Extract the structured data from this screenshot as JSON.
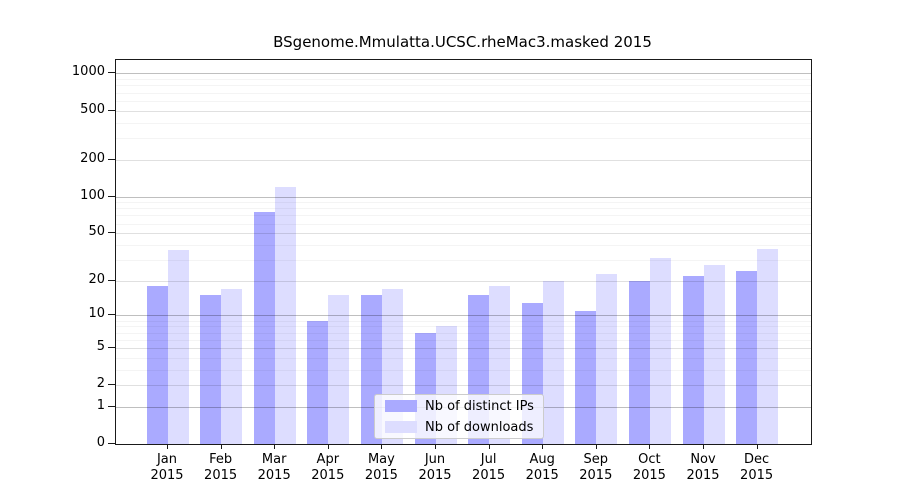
{
  "chart_data": {
    "type": "bar",
    "title": "BSgenome.Mmulatta.UCSC.rheMac3.masked 2015",
    "x_categories": [
      "Jan",
      "Feb",
      "Mar",
      "Apr",
      "May",
      "Jun",
      "Jul",
      "Aug",
      "Sep",
      "Oct",
      "Nov",
      "Dec"
    ],
    "x_year_label": "2015",
    "series": [
      {
        "name": "Nb of distinct IPs",
        "color": "#aaaaff",
        "values": [
          18,
          15,
          75,
          9,
          15,
          7,
          15,
          13,
          11,
          20,
          22,
          24
        ]
      },
      {
        "name": "Nb of downloads",
        "color": "#ddddff",
        "values": [
          36,
          17,
          120,
          15,
          17,
          8,
          18,
          20,
          23,
          31,
          27,
          37
        ]
      }
    ],
    "y_axis": {
      "scale": "log1p",
      "ticks": [
        0,
        1,
        2,
        5,
        10,
        20,
        50,
        100,
        200,
        500,
        1000
      ],
      "decade_ticks": [
        1,
        10,
        100,
        1000
      ],
      "minor_ticks": [
        3,
        4,
        6,
        7,
        8,
        9,
        30,
        40,
        60,
        70,
        80,
        90,
        300,
        400,
        600,
        700,
        800,
        900
      ],
      "range": [
        0,
        1000
      ]
    },
    "grid": "on",
    "legend": {
      "position": "inside-bottom-center",
      "items": [
        "Nb of distinct IPs",
        "Nb of downloads"
      ]
    }
  },
  "colors": {
    "distinct_ips_bar": "#aaaaff",
    "downloads_bar": "#ddddff",
    "axis": "#1a1a1a",
    "background": "#ffffff"
  }
}
